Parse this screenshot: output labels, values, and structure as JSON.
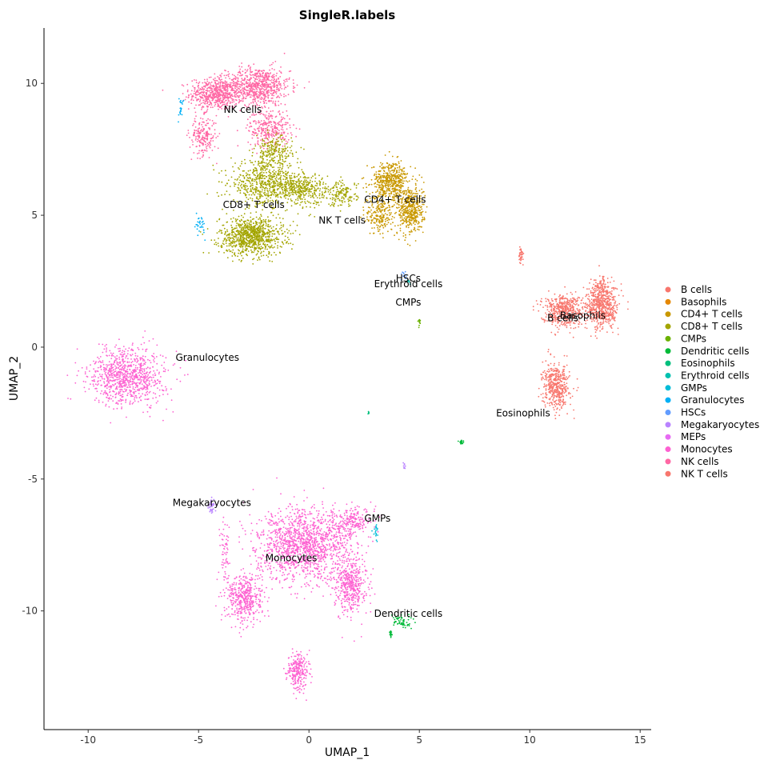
{
  "chart_data": {
    "type": "scatter",
    "title": "SingleR.labels",
    "xlabel": "UMAP_1",
    "ylabel": "UMAP_2",
    "xlim": [
      -12,
      15.5
    ],
    "ylim": [
      -14.5,
      12.1
    ],
    "xticks": [
      -10,
      -5,
      0,
      5,
      10,
      15
    ],
    "xtick_labels": [
      "-10",
      "-5",
      "0",
      "5",
      "10",
      "15"
    ],
    "yticks": [
      -10,
      -5,
      0,
      5,
      10
    ],
    "ytick_labels": [
      "-10",
      "-5",
      "0",
      "5",
      "10"
    ],
    "grid": false,
    "legend_position": "right",
    "series": [
      {
        "name": "B cells",
        "color": "#F8766D"
      },
      {
        "name": "Basophils",
        "color": "#E58700"
      },
      {
        "name": "CD4+ T cells",
        "color": "#C99800"
      },
      {
        "name": "CD8+ T cells",
        "color": "#A3A500"
      },
      {
        "name": "CMPs",
        "color": "#6BB100"
      },
      {
        "name": "Dendritic cells",
        "color": "#00BA38"
      },
      {
        "name": "Eosinophils",
        "color": "#00BF7D"
      },
      {
        "name": "Erythroid cells",
        "color": "#00C0AF"
      },
      {
        "name": "GMPs",
        "color": "#00BCD8"
      },
      {
        "name": "Granulocytes",
        "color": "#00B0F6"
      },
      {
        "name": "HSCs",
        "color": "#619CFF"
      },
      {
        "name": "Megakaryocytes",
        "color": "#B983FF"
      },
      {
        "name": "MEPs",
        "color": "#E76BF3"
      },
      {
        "name": "Monocytes",
        "color": "#FD61D1"
      },
      {
        "name": "NK cells",
        "color": "#FF67A4"
      },
      {
        "name": "NK T cells",
        "color": "#F8766D"
      }
    ],
    "clusters": [
      {
        "label": "NK cells",
        "color": "#FF67A4",
        "x": -3.0,
        "y": 9.0,
        "blobs": [
          [
            -4.2,
            9.6,
            1.0,
            0.5,
            600
          ],
          [
            -2.3,
            9.9,
            1.2,
            0.6,
            700
          ],
          [
            -4.8,
            8.0,
            0.5,
            0.6,
            200
          ],
          [
            -1.8,
            8.3,
            0.8,
            0.6,
            300
          ]
        ]
      },
      {
        "label": "CD8+ T cells",
        "color": "#A3A500",
        "x": -2.5,
        "y": 5.4,
        "blobs": [
          [
            -2.6,
            4.2,
            1.2,
            0.6,
            900
          ],
          [
            -2.0,
            6.2,
            1.3,
            0.7,
            600
          ],
          [
            -0.3,
            6.0,
            0.9,
            0.5,
            350
          ],
          [
            1.5,
            5.8,
            0.6,
            0.4,
            150
          ],
          [
            -1.6,
            7.4,
            0.7,
            0.5,
            200
          ]
        ]
      },
      {
        "label": "CD4+ T cells",
        "color": "#C99800",
        "x": 3.9,
        "y": 5.6,
        "blobs": [
          [
            3.7,
            6.3,
            0.7,
            0.6,
            500
          ],
          [
            4.6,
            5.2,
            0.5,
            0.8,
            450
          ],
          [
            3.2,
            5.0,
            0.5,
            0.6,
            200
          ]
        ]
      },
      {
        "label": "NK T cells",
        "color": "#F8766D",
        "x": 1.5,
        "y": 4.8,
        "blobs": []
      },
      {
        "label": "HSCs",
        "color": "#619CFF",
        "x": 4.5,
        "y": 2.6,
        "blobs": [
          [
            4.3,
            2.7,
            0.12,
            0.15,
            12
          ]
        ]
      },
      {
        "label": "Erythroid cells",
        "color": "#00C0AF",
        "x": 4.5,
        "y": 2.4,
        "blobs": [
          [
            4.5,
            2.5,
            0.1,
            0.1,
            6
          ]
        ]
      },
      {
        "label": "CMPs",
        "color": "#6BB100",
        "x": 4.5,
        "y": 1.7,
        "blobs": [
          [
            5.0,
            1.0,
            0.05,
            0.12,
            12
          ]
        ]
      },
      {
        "label": "B cells",
        "color": "#F8766D",
        "x": 11.5,
        "y": 1.1,
        "blobs": [
          [
            11.5,
            1.4,
            0.8,
            0.5,
            500
          ],
          [
            13.3,
            1.5,
            0.6,
            0.7,
            550
          ],
          [
            11.2,
            -1.5,
            0.5,
            0.7,
            450
          ],
          [
            9.6,
            3.5,
            0.08,
            0.35,
            40
          ],
          [
            13.2,
            2.3,
            0.3,
            0.3,
            80
          ]
        ]
      },
      {
        "label": "Basophils",
        "color": "#E58700",
        "x": 12.4,
        "y": 1.2,
        "blobs": []
      },
      {
        "label": "Eosinophils",
        "color": "#00BF7D",
        "x": 9.7,
        "y": -2.5,
        "blobs": [
          [
            2.7,
            -2.5,
            0.05,
            0.05,
            6
          ]
        ]
      },
      {
        "label": "Granulocytes",
        "color": "#00B0F6",
        "x": -4.6,
        "y": -0.4,
        "blobs": [
          [
            -5.8,
            9.0,
            0.1,
            0.3,
            20
          ],
          [
            -4.9,
            4.6,
            0.2,
            0.4,
            30
          ]
        ]
      },
      {
        "label": "Monocytes",
        "color": "#FD61D1",
        "x": -0.8,
        "y": -8.0,
        "blobs": [
          [
            -8.2,
            -1.1,
            1.4,
            0.9,
            900
          ],
          [
            -0.2,
            -7.5,
            1.8,
            1.1,
            1400
          ],
          [
            -2.9,
            -9.5,
            0.7,
            0.8,
            450
          ],
          [
            1.9,
            -9.0,
            0.6,
            0.9,
            450
          ],
          [
            -0.5,
            -12.3,
            0.4,
            0.6,
            250
          ],
          [
            2.0,
            -6.6,
            0.7,
            0.4,
            200
          ],
          [
            -3.8,
            -7.7,
            0.2,
            1.2,
            60
          ]
        ]
      },
      {
        "label": "Megakaryocytes",
        "color": "#B983FF",
        "x": -4.4,
        "y": -5.9,
        "blobs": [
          [
            -4.4,
            -6.0,
            0.12,
            0.25,
            40
          ],
          [
            4.3,
            -4.5,
            0.05,
            0.1,
            10
          ]
        ]
      },
      {
        "label": "GMPs",
        "color": "#00BCD8",
        "x": 3.1,
        "y": -6.5,
        "blobs": [
          [
            3.0,
            -7.0,
            0.1,
            0.3,
            20
          ]
        ]
      },
      {
        "label": "Dendritic cells",
        "color": "#00BA38",
        "x": 4.5,
        "y": -10.1,
        "blobs": [
          [
            4.2,
            -10.4,
            0.4,
            0.2,
            60
          ],
          [
            3.7,
            -10.9,
            0.05,
            0.1,
            15
          ],
          [
            6.9,
            -3.6,
            0.08,
            0.08,
            20
          ]
        ]
      }
    ]
  }
}
